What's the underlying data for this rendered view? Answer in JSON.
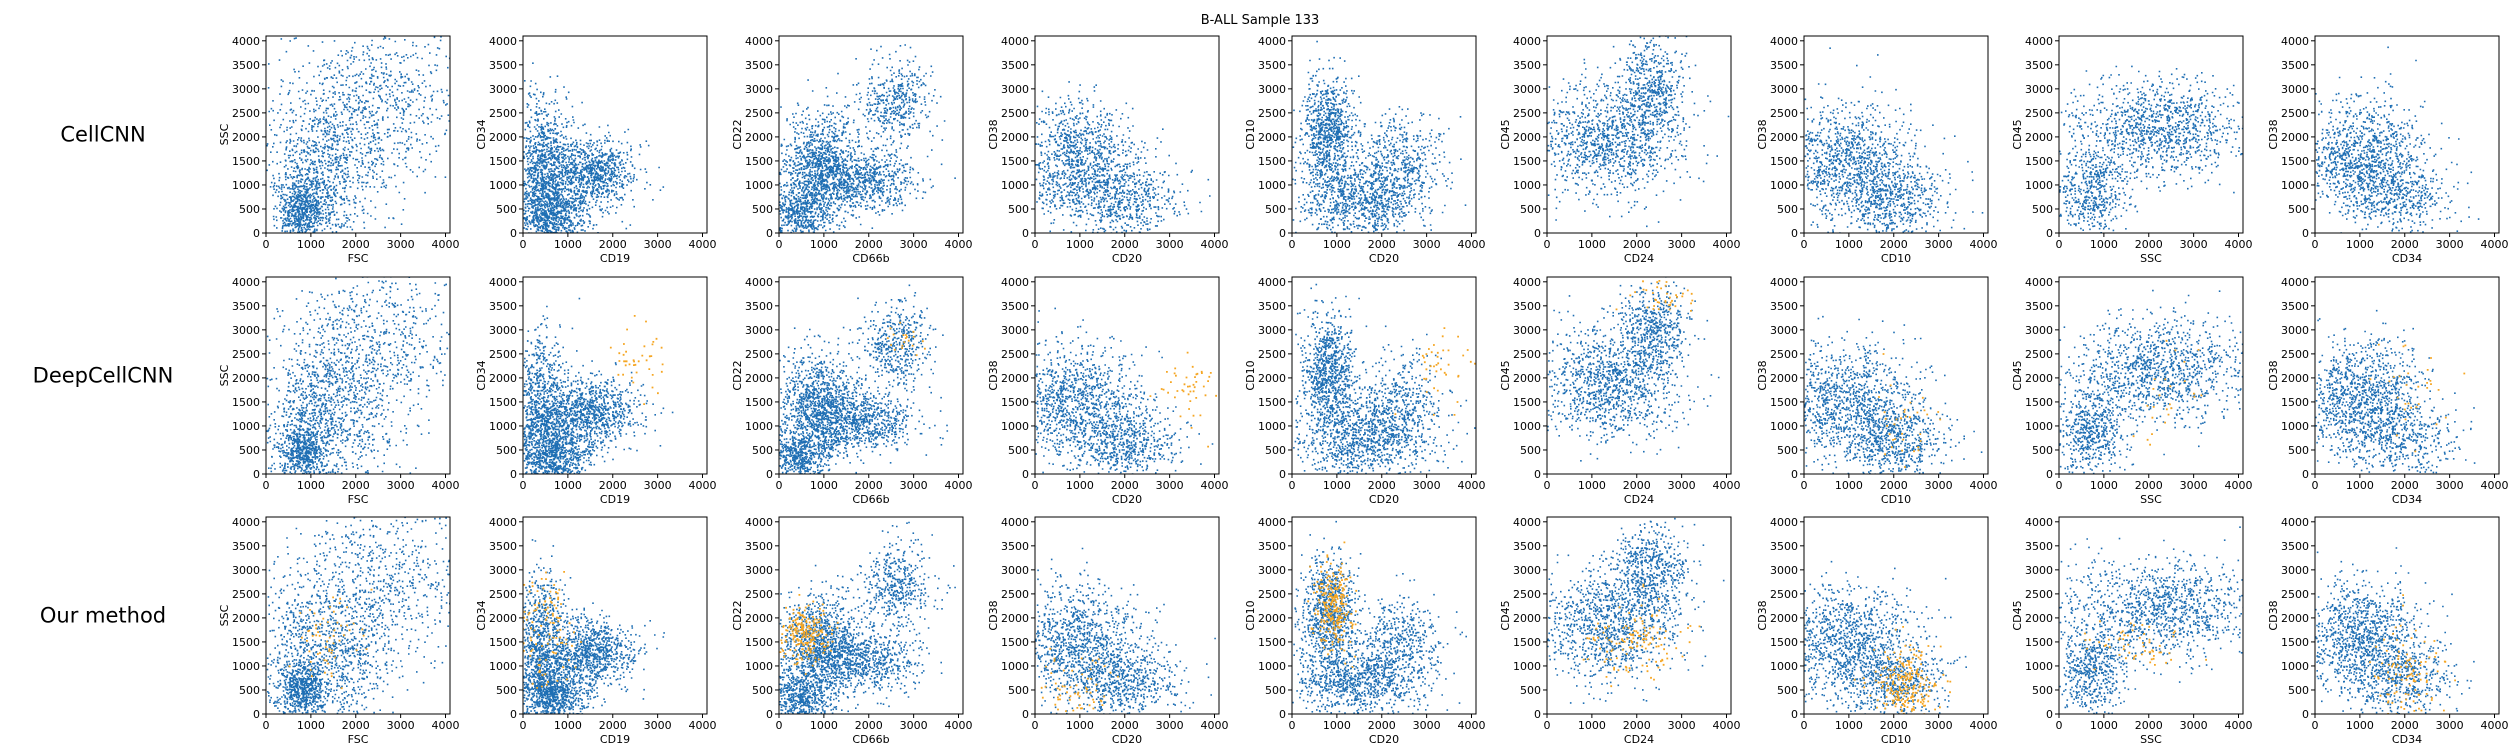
{
  "figure": {
    "title": "B-ALL Sample 133",
    "colors": {
      "population": "#1f6fb4",
      "highlight": "#f5a623"
    }
  },
  "chart_data": {
    "type": "scatter",
    "title": "B-ALL Sample 133",
    "rows": [
      "CellCNN",
      "DeepCellCNN",
      "Our method"
    ],
    "panels": [
      {
        "x": "FSC",
        "y": "SSC"
      },
      {
        "x": "CD19",
        "y": "CD34"
      },
      {
        "x": "CD66b",
        "y": "CD22"
      },
      {
        "x": "CD20",
        "y": "CD38"
      },
      {
        "x": "CD20",
        "y": "CD10"
      },
      {
        "x": "CD24",
        "y": "CD45"
      },
      {
        "x": "CD10",
        "y": "CD38"
      },
      {
        "x": "SSC",
        "y": "CD45"
      },
      {
        "x": "CD34",
        "y": "CD38"
      }
    ],
    "xlim": [
      0,
      4100
    ],
    "ylim": [
      0,
      4100
    ],
    "xticks": [
      "0",
      "1000",
      "2000",
      "3000",
      "4000"
    ],
    "yticks": [
      "0",
      "500",
      "1000",
      "1500",
      "2000",
      "2500",
      "3000",
      "3500",
      "4000"
    ],
    "series": [
      {
        "color": "#1f6fb4",
        "role": "all cells"
      },
      {
        "color": "#f5a623",
        "role": "selected cells"
      }
    ],
    "highlighted_regions": [
      [
        null,
        null,
        null,
        null,
        null,
        null,
        null,
        null,
        null
      ],
      [
        null,
        {
          "cx": 2600,
          "cy": 2300,
          "sx": 350,
          "sy": 300,
          "n": 40
        },
        {
          "cx": 2800,
          "cy": 2800,
          "sx": 150,
          "sy": 150,
          "n": 20
        },
        {
          "cx": 3400,
          "cy": 1700,
          "sx": 350,
          "sy": 400,
          "n": 45
        },
        {
          "cx": 3300,
          "cy": 2200,
          "sx": 400,
          "sy": 400,
          "n": 40
        },
        {
          "cx": 2600,
          "cy": 3700,
          "sx": 350,
          "sy": 200,
          "n": 40
        },
        {
          "cx": 2300,
          "cy": 1100,
          "sx": 450,
          "sy": 500,
          "n": 35
        },
        {
          "cx": 2400,
          "cy": 1600,
          "sx": 400,
          "sy": 500,
          "n": 25
        },
        {
          "cx": 2200,
          "cy": 1700,
          "sx": 350,
          "sy": 500,
          "n": 30
        }
      ],
      [
        {
          "cx": 1300,
          "cy": 1600,
          "sx": 400,
          "sy": 500,
          "n": 60
        },
        {
          "cx": 500,
          "cy": 1700,
          "sx": 300,
          "sy": 600,
          "n": 110
        },
        {
          "cx": 550,
          "cy": 1700,
          "sx": 280,
          "sy": 300,
          "n": 220
        },
        {
          "cx": 800,
          "cy": 500,
          "sx": 500,
          "sy": 400,
          "n": 70
        },
        {
          "cx": 900,
          "cy": 2300,
          "sx": 200,
          "sy": 450,
          "n": 260
        },
        {
          "cx": 1900,
          "cy": 1500,
          "sx": 500,
          "sy": 400,
          "n": 130
        },
        {
          "cx": 2200,
          "cy": 600,
          "sx": 350,
          "sy": 400,
          "n": 250
        },
        {
          "cx": 1700,
          "cy": 1500,
          "sx": 500,
          "sy": 250,
          "n": 60
        },
        {
          "cx": 2000,
          "cy": 900,
          "sx": 400,
          "sy": 500,
          "n": 110
        }
      ]
    ]
  }
}
